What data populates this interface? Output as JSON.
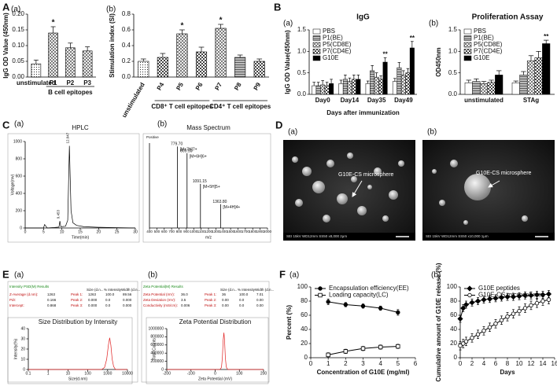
{
  "figure_labels": [
    "A",
    "B",
    "C",
    "D",
    "E",
    "F"
  ],
  "images": [
    {
      "panel": "(a)",
      "label": "G10E-CS microsphere",
      "footer": "SEI   15kV   WD12mm   SS50   x8,000   2μm"
    },
    {
      "panel": "(b)",
      "label": "G10E-CS microsphere",
      "footer": "SEI   15kV   WD12mm   SS50   x10,000   1μm"
    }
  ],
  "chart_data": [
    {
      "type": "bar",
      "panel": "(a)",
      "ylabel": "IgG OD Value (450nm)",
      "categories": [
        "unstimulated",
        "P1",
        "P2",
        "P3"
      ],
      "values": [
        0.042,
        0.14,
        0.093,
        0.083
      ],
      "errors": [
        0.012,
        0.02,
        0.015,
        0.013
      ],
      "stars": [
        null,
        "*",
        null,
        null
      ],
      "patterns": [
        "dots",
        "cross",
        "cross",
        "cross"
      ],
      "groups": [
        {
          "label": "B cell epitopes"
        }
      ],
      "ylim": [
        0,
        0.2
      ],
      "yticks": [
        {
          "value": 0,
          "label": "0.00"
        },
        {
          "value": 0.05,
          "label": "0.05"
        },
        {
          "value": 0.1,
          "label": "0.10"
        },
        {
          "value": 0.15,
          "label": "0.15"
        },
        {
          "value": 0.2,
          "label": "0.20"
        }
      ]
    },
    {
      "type": "bar",
      "panel": "(b)",
      "ylabel": "Stimulation index (SI)",
      "categories": [
        "unstimulated",
        "P4",
        "P5",
        "P6",
        "P7",
        "P8",
        "P9"
      ],
      "values": [
        0.2,
        0.25,
        0.55,
        0.32,
        0.62,
        0.25,
        0.2
      ],
      "errors": [
        0.03,
        0.05,
        0.05,
        0.06,
        0.05,
        0.03,
        0.03
      ],
      "stars": [
        null,
        null,
        "*",
        null,
        "*",
        null,
        null
      ],
      "patterns": [
        "dots",
        "check",
        "cross",
        "check",
        "cross",
        "hlines",
        "check"
      ],
      "groups": [
        {
          "label": "CD8⁺ T cell epitopes"
        },
        {
          "label": "CD4⁺ T cell epitopes"
        }
      ],
      "ylim": [
        0,
        0.8
      ],
      "yticks": [
        {
          "value": 0,
          "label": "0.0"
        },
        0.2,
        0.4,
        0.6,
        0.8
      ]
    },
    {
      "type": "bar",
      "panel": "(a)",
      "title": "IgG",
      "ylabel": "IgG OD Value(450nm)",
      "xlabel": "Days after immunization",
      "categories": [
        "Day0",
        "Day14",
        "Day35",
        "Day49"
      ],
      "legend": "upper left",
      "series": [
        {
          "name": "PBS",
          "color": "#ffffff",
          "values": [
            0.2,
            0.25,
            0.25,
            0.3
          ],
          "errors": [
            0.08,
            0.08,
            0.06,
            0.07
          ]
        },
        {
          "name": "P1(BE)",
          "pattern": "hlines",
          "values": [
            0.2,
            0.35,
            0.55,
            0.62
          ],
          "errors": [
            0.08,
            0.1,
            0.12,
            0.12
          ]
        },
        {
          "name": "P5(CD8E)",
          "pattern": "cross",
          "values": [
            0.22,
            0.3,
            0.4,
            0.45
          ],
          "errors": [
            0.1,
            0.08,
            0.1,
            0.1
          ]
        },
        {
          "name": "P7(CD4E)",
          "pattern": "check",
          "values": [
            0.2,
            0.35,
            0.35,
            0.5
          ],
          "errors": [
            0.08,
            0.1,
            0.08,
            0.1
          ]
        },
        {
          "name": "G10E",
          "color": "#000000",
          "values": [
            0.25,
            0.35,
            0.75,
            1.08
          ],
          "errors": [
            0.1,
            0.1,
            0.1,
            0.15
          ],
          "stars": [
            null,
            null,
            "**",
            "**"
          ]
        }
      ],
      "ylim": [
        0,
        1.5
      ],
      "yticks": [
        {
          "value": 0,
          "label": "0.0"
        },
        0.5,
        {
          "value": 1,
          "label": "1.0"
        },
        1.5
      ]
    },
    {
      "type": "bar",
      "panel": "(b)",
      "title": "Proliferation Assay",
      "ylabel": "OD450nm",
      "categories": [
        "unstimulated",
        "STAg"
      ],
      "legend": "upper left",
      "series": [
        {
          "name": "PBS",
          "color": "#ffffff",
          "values": [
            0.27,
            0.27
          ],
          "errors": [
            0.06,
            0.04
          ]
        },
        {
          "name": "P1(BE)",
          "pattern": "hlines",
          "values": [
            0.3,
            0.45
          ],
          "errors": [
            0.06,
            0.08
          ]
        },
        {
          "name": "P5(CD8E)",
          "pattern": "cross",
          "values": [
            0.25,
            0.78
          ],
          "errors": [
            0.05,
            0.12
          ]
        },
        {
          "name": "P7(CD4E)",
          "pattern": "check",
          "values": [
            0.28,
            0.85
          ],
          "errors": [
            0.05,
            0.15
          ]
        },
        {
          "name": "G10E",
          "color": "#000000",
          "values": [
            0.45,
            1.18
          ],
          "errors": [
            0.1,
            0.08
          ],
          "stars": [
            null,
            "**"
          ]
        }
      ],
      "ylim": [
        0,
        1.5
      ],
      "yticks": [
        {
          "value": 0,
          "label": "0.0"
        },
        0.5,
        {
          "value": 1,
          "label": "1.0"
        },
        1.5
      ]
    },
    {
      "type": "line",
      "panel": "(a)",
      "title": "HPLC",
      "xlabel": "Time(min)",
      "ylabel": "Voltage(mv)",
      "series": [
        {
          "color": "#000000",
          "x": [
            0,
            2,
            4,
            5,
            5.3,
            6,
            8,
            9.2,
            9.45,
            9.7,
            11,
            11.6,
            12.05,
            12.5,
            13,
            14,
            16,
            20,
            25,
            30
          ],
          "values": [
            0,
            0,
            0,
            0,
            40,
            0,
            5,
            10,
            80,
            15,
            20,
            90,
            950,
            200,
            60,
            30,
            15,
            8,
            4,
            0
          ]
        }
      ],
      "annotations": [
        {
          "text": "9.453",
          "x": 9.45,
          "y": 80
        },
        {
          "text": "12.047",
          "x": 12.05,
          "y": 950
        }
      ],
      "xlim": [
        0,
        30
      ],
      "xticks": [
        0,
        5,
        10,
        15,
        20,
        25,
        30
      ],
      "ylim": [
        0,
        1000
      ],
      "yticks": [
        0,
        200,
        400,
        600,
        800,
        1000
      ]
    },
    {
      "type": "stem",
      "panel": "(b)",
      "title": "Mass Spectrum",
      "header": "Positive",
      "xlabel": "m/z",
      "x": [
        779.7,
        909.5,
        1091.15,
        1363.8
      ],
      "values": [
        96,
        88,
        52,
        28
      ],
      "value_labels": [
        "779.70",
        "909.50",
        "1091.15",
        "1363.80"
      ],
      "ion_labels": [
        "[M+7H]7+",
        "[M+6H]6+",
        "[M+5H]5+",
        "[M+4H]4+"
      ],
      "xlim": [
        400,
        2000
      ],
      "xticks": [
        400,
        500,
        600,
        700,
        800,
        900,
        1000,
        1100,
        1200,
        1300,
        1400,
        1500,
        1600,
        1700,
        1800,
        1900,
        2000
      ],
      "ylim": [
        0,
        100
      ]
    },
    {
      "type": "line",
      "panel": "(a)",
      "report_title": "Intensity PSD(M) Results",
      "summary": [
        [
          "Z-Average (d.nm):",
          "1263"
        ],
        [
          "PdI:",
          "0.166"
        ],
        [
          "Intercept:",
          "0.868"
        ]
      ],
      "table": {
        "header": [
          "Size (d.n...",
          "% Intensity",
          "Width (d.n..."
        ],
        "rows": [
          [
            "Peak 1:",
            "1263",
            "100.0",
            "89.56"
          ],
          [
            "Peak 2:",
            "0.000",
            "0.0",
            "0.000"
          ],
          [
            "Peak 3:",
            "0.000",
            "0.0",
            "0.000"
          ]
        ]
      },
      "title": "Size Distribution by Intensity",
      "xlabel": "Size(d.nm)",
      "ylabel": "Intensity(%)",
      "log_x": true,
      "series": [
        {
          "color": "#e02020",
          "x": [
            0.1,
            500,
            700,
            900,
            1100,
            1263,
            1450,
            1700,
            2000,
            2500,
            10000
          ],
          "values": [
            0,
            0,
            2,
            10,
            24,
            31,
            24,
            10,
            3,
            0,
            0
          ]
        }
      ],
      "xlim": [
        0.1,
        10000
      ],
      "xticks": [
        0.1,
        1,
        10,
        100,
        1000,
        10000
      ],
      "ylim": [
        0,
        40
      ],
      "yticks": [
        0,
        10,
        20,
        30,
        40
      ]
    },
    {
      "type": "line",
      "panel": "(b)",
      "report_title": "Zeta Potential(M) Results",
      "summary": [
        [
          "Zeta Potential (mV):",
          "36.0"
        ],
        [
          "Zeta Deviation (mV):",
          "3.5"
        ],
        [
          "Conductivity (mS/cm):",
          "0.006"
        ]
      ],
      "table": {
        "header": [
          "Size (d.n...",
          "% Intensity",
          "Width (d.n..."
        ],
        "rows": [
          [
            "Peak 1:",
            "36",
            "100.0",
            "7.01"
          ],
          [
            "Peak 2:",
            "0.00",
            "0.0",
            "0.00"
          ],
          [
            "Peak 3:",
            "0.00",
            "0.0",
            "0.00"
          ]
        ]
      },
      "title": "Zeta Potential Distribution",
      "xlabel": "Zeta Potential (mV)",
      "ylabel": "Total Counts",
      "series": [
        {
          "color": "#e02020",
          "x": [
            -200,
            20,
            26,
            30,
            33,
            36,
            39,
            42,
            46,
            52,
            200
          ],
          "values": [
            0,
            0,
            50000,
            300000,
            700000,
            900000,
            700000,
            300000,
            60000,
            0,
            0
          ]
        }
      ],
      "xlim": [
        -200,
        200
      ],
      "xticks": [
        -200,
        -100,
        0,
        100,
        200
      ],
      "ylim": [
        0,
        1000000
      ],
      "yticks": [
        0,
        200000,
        400000,
        600000,
        800000,
        1000000
      ]
    },
    {
      "type": "line",
      "panel": "(a)",
      "xlabel": "Concentration of G10E (mg/ml)",
      "ylabel": "Percent (%)",
      "legend": "upper left",
      "series": [
        {
          "name": "Encapsulation efficiency(EE)",
          "color": "#000000",
          "marker": "circle",
          "marker_fill": "#000000",
          "x": [
            1,
            2,
            3,
            4,
            5
          ],
          "values": [
            79,
            75,
            73,
            70,
            64
          ],
          "errors": [
            4,
            3,
            3,
            3,
            4
          ]
        },
        {
          "name": "Loading capacity(LC)",
          "color": "#000000",
          "marker": "square",
          "marker_fill": "#ffffff",
          "x": [
            1,
            2,
            3,
            4,
            5
          ],
          "values": [
            4,
            9,
            13,
            15,
            16
          ],
          "errors": [
            3,
            3,
            3,
            3,
            3
          ]
        }
      ],
      "xlim": [
        0,
        6
      ],
      "xticks": [
        0,
        1,
        2,
        3,
        4,
        5,
        6
      ],
      "ylim": [
        0,
        100
      ],
      "yticks": [
        0,
        20,
        40,
        60,
        80,
        100
      ]
    },
    {
      "type": "line",
      "panel": "(b)",
      "xlabel": "Days",
      "ylabel": "Cumulative amount of G10E release (%)",
      "legend": "upper left",
      "series": [
        {
          "name": "G10E peptides",
          "color": "#000000",
          "marker": "diamond",
          "marker_fill": "#000000",
          "x": [
            0,
            0.5,
            1,
            2,
            3,
            4,
            5,
            6,
            7,
            8,
            9,
            10,
            11,
            12,
            13,
            14,
            15
          ],
          "values": [
            55,
            70,
            75,
            78,
            80,
            82,
            83,
            84,
            85,
            86,
            86,
            87,
            88,
            88,
            89,
            89,
            90
          ],
          "errors": [
            5,
            5,
            5,
            5,
            5,
            5,
            5,
            5,
            5,
            5,
            5,
            5,
            5,
            5,
            5,
            5,
            5
          ]
        },
        {
          "name": "G10E-CS microspheres",
          "color": "#000000",
          "marker": "circle",
          "marker_fill": "#ffffff",
          "x": [
            0,
            0.5,
            1,
            2,
            3,
            4,
            5,
            6,
            7,
            8,
            9,
            10,
            11,
            12,
            13,
            14,
            15
          ],
          "values": [
            17,
            20,
            23,
            28,
            33,
            38,
            43,
            48,
            53,
            58,
            62,
            66,
            70,
            74,
            77,
            80,
            82
          ],
          "errors": [
            6,
            6,
            6,
            6,
            6,
            6,
            6,
            6,
            6,
            6,
            6,
            6,
            6,
            6,
            6,
            6,
            6
          ]
        }
      ],
      "xlim": [
        0,
        16
      ],
      "xticks": [
        0,
        2,
        4,
        6,
        8,
        10,
        12,
        14,
        16
      ],
      "ylim": [
        0,
        100
      ],
      "yticks": [
        0,
        20,
        40,
        60,
        80,
        100
      ]
    }
  ]
}
